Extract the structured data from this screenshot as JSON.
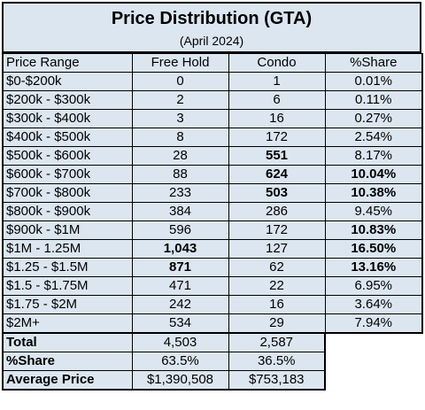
{
  "title": "Price Distribution (GTA)",
  "subtitle": "(April 2024)",
  "headers": [
    "Price Range",
    "Free Hold",
    "Condo",
    "%Share"
  ],
  "rows": [
    {
      "range": "$0-$200k",
      "freehold": "0",
      "condo": "1",
      "share": "0.01%",
      "fb": false,
      "cb": false,
      "sb": false
    },
    {
      "range": "$200k - $300k",
      "freehold": "2",
      "condo": "6",
      "share": "0.11%",
      "fb": false,
      "cb": false,
      "sb": false
    },
    {
      "range": "$300k - $400k",
      "freehold": "3",
      "condo": "16",
      "share": "0.27%",
      "fb": false,
      "cb": false,
      "sb": false
    },
    {
      "range": "$400k - $500k",
      "freehold": "8",
      "condo": "172",
      "share": "2.54%",
      "fb": false,
      "cb": false,
      "sb": false
    },
    {
      "range": "$500k - $600k",
      "freehold": "28",
      "condo": "551",
      "share": "8.17%",
      "fb": false,
      "cb": true,
      "sb": false
    },
    {
      "range": "$600k - $700k",
      "freehold": "88",
      "condo": "624",
      "share": "10.04%",
      "fb": false,
      "cb": true,
      "sb": true
    },
    {
      "range": "$700k - $800k",
      "freehold": "233",
      "condo": "503",
      "share": "10.38%",
      "fb": false,
      "cb": true,
      "sb": true
    },
    {
      "range": "$800k - $900k",
      "freehold": "384",
      "condo": "286",
      "share": "9.45%",
      "fb": false,
      "cb": false,
      "sb": false
    },
    {
      "range": "$900k - $1M",
      "freehold": "596",
      "condo": "172",
      "share": "10.83%",
      "fb": false,
      "cb": false,
      "sb": true
    },
    {
      "range": "$1M - 1.25M",
      "freehold": "1,043",
      "condo": "127",
      "share": "16.50%",
      "fb": true,
      "cb": false,
      "sb": true
    },
    {
      "range": "$1.25 - $1.5M",
      "freehold": "871",
      "condo": "62",
      "share": "13.16%",
      "fb": true,
      "cb": false,
      "sb": true
    },
    {
      "range": "$1.5 - $1.75M",
      "freehold": "471",
      "condo": "22",
      "share": "6.95%",
      "fb": false,
      "cb": false,
      "sb": false
    },
    {
      "range": "$1.75 - $2M",
      "freehold": "242",
      "condo": "16",
      "share": "3.64%",
      "fb": false,
      "cb": false,
      "sb": false
    },
    {
      "range": "$2M+",
      "freehold": "534",
      "condo": "29",
      "share": "7.94%",
      "fb": false,
      "cb": false,
      "sb": false
    }
  ],
  "summary": [
    {
      "label": "Total",
      "freehold": "4,503",
      "condo": "2,587"
    },
    {
      "label": "%Share",
      "freehold": "63.5%",
      "condo": "36.5%"
    },
    {
      "label": "Average Price",
      "freehold": "$1,390,508",
      "condo": "$753,183"
    }
  ]
}
